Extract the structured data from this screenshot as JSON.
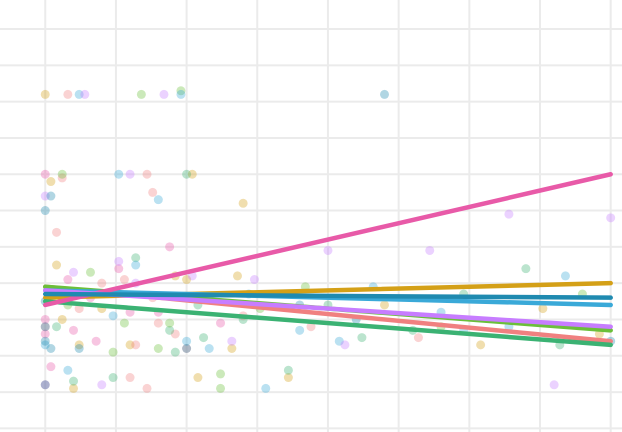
{
  "chart_data": {
    "type": "scatter",
    "title": "",
    "xlabel": "",
    "ylabel": "",
    "xlim": [
      -0.08,
      1.02
    ],
    "ylim": [
      -0.55,
      5.4
    ],
    "x_gridlines": [
      0.0,
      0.125,
      0.25,
      0.375,
      0.5,
      0.625,
      0.75,
      0.875,
      1.0
    ],
    "y_gridlines": [
      -0.5,
      0.0,
      0.5,
      1.0,
      1.5,
      2.0,
      2.5,
      3.0,
      3.5,
      4.0,
      4.5,
      5.0
    ],
    "grid": true,
    "legend": "none",
    "point_opacity": 0.35,
    "series": [
      {
        "color": "#d4a017",
        "fit": [
          1.3,
          1.5
        ],
        "points": [
          [
            0.0,
            4.1
          ],
          [
            0.01,
            2.9
          ],
          [
            0.02,
            1.75
          ],
          [
            0.03,
            1.0
          ],
          [
            0.06,
            0.65
          ],
          [
            0.15,
            0.65
          ],
          [
            0.23,
            1.6
          ],
          [
            0.25,
            1.55
          ],
          [
            0.26,
            3.0
          ],
          [
            0.33,
            0.6
          ],
          [
            0.34,
            1.6
          ],
          [
            0.35,
            2.6
          ],
          [
            0.6,
            1.2
          ],
          [
            0.77,
            0.65
          ],
          [
            0.88,
            1.15
          ],
          [
            0.98,
            0.8
          ],
          [
            0.43,
            0.2
          ],
          [
            0.27,
            0.2
          ],
          [
            0.1,
            1.15
          ],
          [
            0.05,
            0.05
          ]
        ]
      },
      {
        "color": "#f08080",
        "fit": [
          1.45,
          0.7
        ],
        "points": [
          [
            0.04,
            4.1
          ],
          [
            0.03,
            2.95
          ],
          [
            0.18,
            3.0
          ],
          [
            0.19,
            2.75
          ],
          [
            0.02,
            2.2
          ],
          [
            0.14,
            1.55
          ],
          [
            0.19,
            1.3
          ],
          [
            0.2,
            0.95
          ],
          [
            0.16,
            0.65
          ],
          [
            0.06,
            1.15
          ],
          [
            0.1,
            1.5
          ],
          [
            0.23,
            0.8
          ],
          [
            0.25,
            0.6
          ],
          [
            0.15,
            0.2
          ],
          [
            0.18,
            0.05
          ],
          [
            0.35,
            1.05
          ],
          [
            0.47,
            0.9
          ],
          [
            0.66,
            0.75
          ],
          [
            0.0,
            0.9
          ]
        ]
      },
      {
        "color": "#3bb273",
        "fit": [
          1.25,
          0.65
        ],
        "points": [
          [
            0.22,
            0.85
          ],
          [
            0.23,
            0.55
          ],
          [
            0.28,
            0.75
          ],
          [
            0.25,
            3.0
          ],
          [
            0.35,
            1.0
          ],
          [
            0.43,
            0.3
          ],
          [
            0.56,
            0.75
          ],
          [
            0.65,
            0.85
          ],
          [
            0.74,
            1.35
          ],
          [
            0.85,
            1.7
          ],
          [
            0.91,
            0.65
          ],
          [
            0.05,
            0.15
          ],
          [
            0.12,
            0.2
          ],
          [
            0.02,
            0.9
          ],
          [
            0.27,
            1.2
          ],
          [
            0.16,
            1.85
          ],
          [
            0.5,
            1.2
          ]
        ]
      },
      {
        "color": "#6bbf3a",
        "fit": [
          1.45,
          0.85
        ],
        "points": [
          [
            0.17,
            4.1
          ],
          [
            0.24,
            4.15
          ],
          [
            0.31,
            0.25
          ],
          [
            0.31,
            0.05
          ],
          [
            0.14,
            0.95
          ],
          [
            0.08,
            1.65
          ],
          [
            0.04,
            1.2
          ],
          [
            0.03,
            3.0
          ],
          [
            0.46,
            1.45
          ],
          [
            0.7,
            0.9
          ],
          [
            0.95,
            1.35
          ],
          [
            0.12,
            0.55
          ],
          [
            0.22,
            0.95
          ],
          [
            0.2,
            0.6
          ],
          [
            0.38,
            1.15
          ]
        ]
      },
      {
        "color": "#3aa9d8",
        "fit": [
          1.4,
          1.2
        ],
        "points": [
          [
            0.06,
            4.1
          ],
          [
            0.24,
            4.1
          ],
          [
            0.13,
            3.0
          ],
          [
            0.2,
            2.65
          ],
          [
            0.09,
            1.35
          ],
          [
            0.12,
            1.05
          ],
          [
            0.16,
            1.75
          ],
          [
            0.25,
            0.7
          ],
          [
            0.29,
            0.6
          ],
          [
            0.45,
            0.85
          ],
          [
            0.52,
            0.7
          ],
          [
            0.74,
            0.85
          ],
          [
            0.92,
            1.6
          ],
          [
            0.82,
            0.9
          ],
          [
            0.0,
            0.65
          ],
          [
            0.04,
            0.3
          ],
          [
            0.39,
            0.05
          ],
          [
            0.36,
            1.35
          ],
          [
            0.58,
            1.45
          ],
          [
            0.7,
            1.1
          ]
        ]
      },
      {
        "color": "#e85aa8",
        "fit": [
          1.2,
          3.0
        ],
        "points": [
          [
            0.0,
            3.0
          ],
          [
            0.0,
            1.0
          ],
          [
            0.0,
            0.8
          ],
          [
            0.02,
            1.4
          ],
          [
            0.08,
            1.3
          ],
          [
            0.15,
            1.1
          ],
          [
            0.05,
            0.85
          ],
          [
            0.09,
            0.7
          ],
          [
            0.13,
            1.7
          ],
          [
            0.22,
            2.0
          ],
          [
            0.2,
            1.1
          ],
          [
            0.31,
            0.95
          ],
          [
            0.0,
            0.1
          ],
          [
            0.01,
            0.35
          ],
          [
            0.04,
            1.55
          ]
        ]
      },
      {
        "color": "#c77dff",
        "fit": [
          1.4,
          0.9
        ],
        "points": [
          [
            0.07,
            4.1
          ],
          [
            0.21,
            4.1
          ],
          [
            0.15,
            3.0
          ],
          [
            0.0,
            2.7
          ],
          [
            0.13,
            1.8
          ],
          [
            0.16,
            1.5
          ],
          [
            0.37,
            1.55
          ],
          [
            0.5,
            1.95
          ],
          [
            0.68,
            1.95
          ],
          [
            0.53,
            0.65
          ],
          [
            0.33,
            0.7
          ],
          [
            0.26,
            1.6
          ],
          [
            0.1,
            0.1
          ],
          [
            0.05,
            1.65
          ],
          [
            0.9,
            0.1
          ],
          [
            1.0,
            2.4
          ],
          [
            0.82,
            2.45
          ]
        ]
      },
      {
        "color": "#1f8ab0",
        "fit": [
          1.35,
          1.3
        ],
        "points": [
          [
            0.6,
            4.1
          ],
          [
            0.01,
            2.7
          ],
          [
            0.0,
            2.5
          ],
          [
            0.0,
            1.25
          ],
          [
            0.0,
            0.9
          ],
          [
            0.0,
            0.7
          ],
          [
            0.0,
            0.1
          ],
          [
            0.01,
            0.6
          ],
          [
            0.06,
            0.6
          ],
          [
            0.25,
            0.6
          ],
          [
            1.0,
            0.7
          ],
          [
            0.55,
            1.0
          ],
          [
            0.45,
            1.2
          ]
        ]
      }
    ]
  }
}
